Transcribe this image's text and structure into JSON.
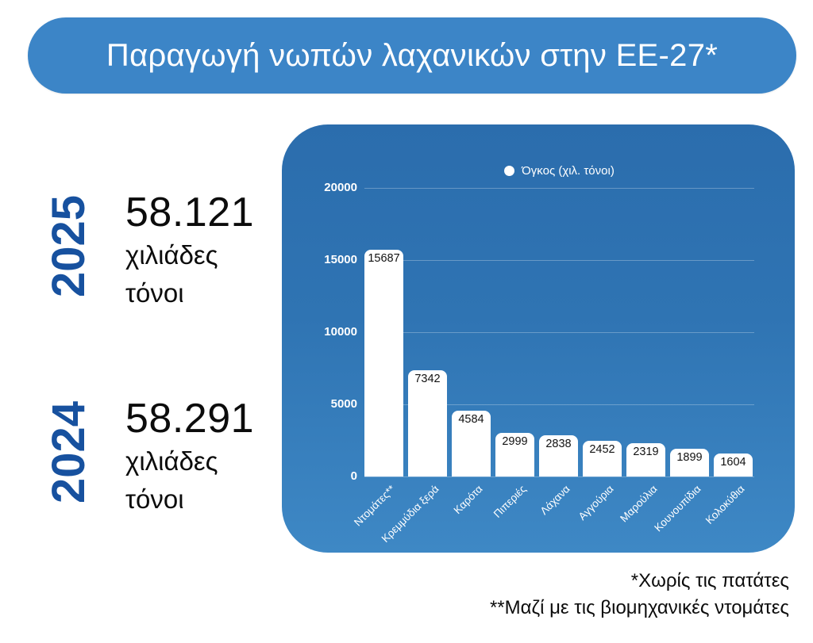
{
  "title": "Παραγωγή νωπών λαχανικών στην ΕΕ-27*",
  "years": [
    {
      "year": "2025",
      "value": "58.121",
      "unit_line1": "χιλιάδες",
      "unit_line2": "τόνοι"
    },
    {
      "year": "2024",
      "value": "58.291",
      "unit_line1": "χιλιάδες",
      "unit_line2": "τόνοι"
    }
  ],
  "chart_data": {
    "type": "bar",
    "title": "",
    "legend": "Όγκος (χιλ. τόνοι)",
    "legend_position": "top-center",
    "categories": [
      "Ντομάτες**",
      "Κρεμμύδια ξερά",
      "Καρότα",
      "Πιπεριές",
      "Λάχανα",
      "Αγγούρια",
      "Μαρούλια",
      "Κουνουπίδια",
      "Κολοκύθια"
    ],
    "values": [
      15687,
      7342,
      4584,
      2999,
      2838,
      2452,
      2319,
      1899,
      1604
    ],
    "ylim": [
      0,
      20000
    ],
    "yticks": [
      0,
      5000,
      10000,
      15000,
      20000
    ],
    "grid": true,
    "bar_color": "#ffffff",
    "bar_label_color": "#111111"
  },
  "footnotes": [
    "*Χωρίς τις πατάτες",
    "**Μαζί με τις βιομηχανικές ντομάτες"
  ],
  "colors": {
    "banner_blue": "#3c85c7",
    "panel_blue": "#2f74b3",
    "year_navy": "#17519f",
    "text_black": "#0c0c0c",
    "white": "#ffffff"
  }
}
